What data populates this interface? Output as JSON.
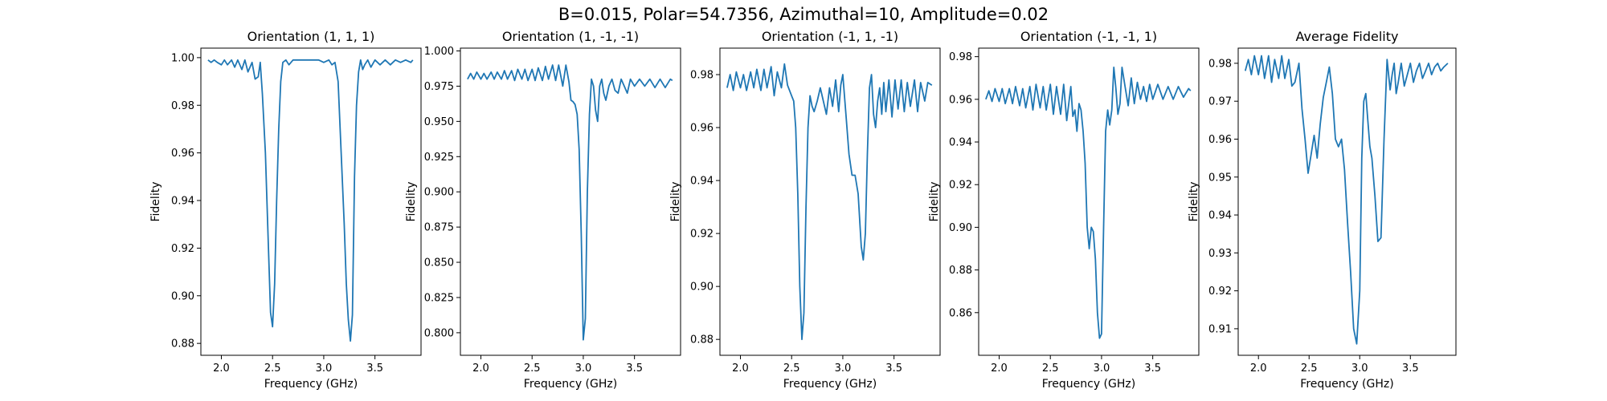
{
  "figure": {
    "title": "B=0.015, Polar=54.7356, Azimuthal=10, Amplitude=0.02",
    "line_color": "#1f77b4"
  },
  "chart_data": [
    {
      "type": "line",
      "title": "Orientation (1, 1, 1)",
      "xlabel": "Frequency (GHz)",
      "ylabel": "Fidelity",
      "xlim": [
        1.8,
        3.95
      ],
      "ylim": [
        0.875,
        1.004
      ],
      "xticks": [
        2.0,
        2.5,
        3.0,
        3.5
      ],
      "xtick_labels": [
        "2.0",
        "2.5",
        "3.0",
        "3.5"
      ],
      "yticks": [
        0.88,
        0.9,
        0.92,
        0.94,
        0.96,
        0.98,
        1.0
      ],
      "ytick_labels": [
        "0.88",
        "0.90",
        "0.92",
        "0.94",
        "0.96",
        "0.98",
        "1.00"
      ],
      "x": [
        1.87,
        1.9,
        1.93,
        1.96,
        2.0,
        2.03,
        2.06,
        2.1,
        2.13,
        2.16,
        2.2,
        2.23,
        2.26,
        2.3,
        2.33,
        2.36,
        2.38,
        2.4,
        2.43,
        2.46,
        2.48,
        2.5,
        2.52,
        2.54,
        2.56,
        2.58,
        2.6,
        2.63,
        2.66,
        2.7,
        2.75,
        2.8,
        2.85,
        2.9,
        2.95,
        3.0,
        3.05,
        3.08,
        3.11,
        3.14,
        3.17,
        3.2,
        3.22,
        3.24,
        3.26,
        3.28,
        3.3,
        3.32,
        3.34,
        3.36,
        3.38,
        3.4,
        3.43,
        3.46,
        3.5,
        3.55,
        3.6,
        3.65,
        3.7,
        3.75,
        3.8,
        3.85,
        3.87
      ],
      "y": [
        0.999,
        0.998,
        0.999,
        0.998,
        0.997,
        0.999,
        0.997,
        0.999,
        0.996,
        0.999,
        0.995,
        0.999,
        0.994,
        0.998,
        0.991,
        0.992,
        0.998,
        0.985,
        0.96,
        0.92,
        0.893,
        0.887,
        0.905,
        0.94,
        0.97,
        0.99,
        0.998,
        0.999,
        0.997,
        0.999,
        0.999,
        0.999,
        0.999,
        0.999,
        0.999,
        0.998,
        0.999,
        0.997,
        0.998,
        0.99,
        0.96,
        0.93,
        0.905,
        0.89,
        0.881,
        0.892,
        0.95,
        0.98,
        0.994,
        0.999,
        0.995,
        0.997,
        0.999,
        0.996,
        0.999,
        0.997,
        0.999,
        0.997,
        0.999,
        0.998,
        0.999,
        0.998,
        0.999
      ]
    },
    {
      "type": "line",
      "title": "Orientation (1, -1, -1)",
      "xlabel": "Frequency (GHz)",
      "ylabel": "Fidelity",
      "xlim": [
        1.8,
        3.95
      ],
      "ylim": [
        0.784,
        1.002
      ],
      "xticks": [
        2.0,
        2.5,
        3.0,
        3.5
      ],
      "xtick_labels": [
        "2.0",
        "2.5",
        "3.0",
        "3.5"
      ],
      "yticks": [
        0.8,
        0.825,
        0.85,
        0.875,
        0.9,
        0.925,
        0.95,
        0.975,
        1.0
      ],
      "ytick_labels": [
        "0.800",
        "0.825",
        "0.850",
        "0.875",
        "0.900",
        "0.925",
        "0.950",
        "0.975",
        "1.000"
      ],
      "x": [
        1.87,
        1.9,
        1.93,
        1.96,
        2.0,
        2.03,
        2.06,
        2.1,
        2.13,
        2.16,
        2.2,
        2.23,
        2.26,
        2.3,
        2.33,
        2.36,
        2.4,
        2.43,
        2.46,
        2.5,
        2.53,
        2.56,
        2.6,
        2.63,
        2.66,
        2.7,
        2.73,
        2.76,
        2.8,
        2.83,
        2.86,
        2.88,
        2.9,
        2.92,
        2.94,
        2.96,
        2.98,
        3.0,
        3.02,
        3.04,
        3.06,
        3.08,
        3.1,
        3.12,
        3.14,
        3.16,
        3.18,
        3.2,
        3.22,
        3.25,
        3.28,
        3.31,
        3.34,
        3.37,
        3.4,
        3.43,
        3.46,
        3.5,
        3.55,
        3.6,
        3.65,
        3.7,
        3.75,
        3.8,
        3.85,
        3.87
      ],
      "y": [
        0.98,
        0.984,
        0.98,
        0.985,
        0.98,
        0.984,
        0.98,
        0.985,
        0.98,
        0.985,
        0.98,
        0.986,
        0.98,
        0.986,
        0.979,
        0.987,
        0.98,
        0.987,
        0.979,
        0.987,
        0.979,
        0.988,
        0.979,
        0.989,
        0.98,
        0.99,
        0.979,
        0.99,
        0.975,
        0.99,
        0.978,
        0.965,
        0.964,
        0.962,
        0.955,
        0.93,
        0.87,
        0.795,
        0.81,
        0.9,
        0.955,
        0.98,
        0.975,
        0.958,
        0.95,
        0.975,
        0.98,
        0.97,
        0.965,
        0.975,
        0.98,
        0.972,
        0.97,
        0.98,
        0.975,
        0.97,
        0.98,
        0.975,
        0.98,
        0.975,
        0.98,
        0.974,
        0.98,
        0.974,
        0.98,
        0.979
      ]
    },
    {
      "type": "line",
      "title": "Orientation (-1, 1, -1)",
      "xlabel": "Frequency (GHz)",
      "ylabel": "Fidelity",
      "xlim": [
        1.8,
        3.95
      ],
      "ylim": [
        0.874,
        0.99
      ],
      "xticks": [
        2.0,
        2.5,
        3.0,
        3.5
      ],
      "xtick_labels": [
        "2.0",
        "2.5",
        "3.0",
        "3.5"
      ],
      "yticks": [
        0.88,
        0.9,
        0.92,
        0.94,
        0.96,
        0.98
      ],
      "ytick_labels": [
        "0.88",
        "0.90",
        "0.92",
        "0.94",
        "0.96",
        "0.98"
      ],
      "x": [
        1.87,
        1.9,
        1.93,
        1.96,
        2.0,
        2.03,
        2.06,
        2.1,
        2.13,
        2.16,
        2.2,
        2.23,
        2.26,
        2.3,
        2.33,
        2.36,
        2.4,
        2.43,
        2.46,
        2.5,
        2.52,
        2.54,
        2.56,
        2.58,
        2.6,
        2.62,
        2.64,
        2.66,
        2.68,
        2.7,
        2.72,
        2.75,
        2.78,
        2.81,
        2.84,
        2.87,
        2.9,
        2.93,
        2.96,
        2.98,
        3.0,
        3.03,
        3.06,
        3.09,
        3.12,
        3.15,
        3.18,
        3.2,
        3.22,
        3.24,
        3.26,
        3.28,
        3.3,
        3.32,
        3.34,
        3.36,
        3.38,
        3.4,
        3.42,
        3.45,
        3.48,
        3.51,
        3.54,
        3.57,
        3.6,
        3.63,
        3.66,
        3.7,
        3.73,
        3.76,
        3.8,
        3.83,
        3.87
      ],
      "y": [
        0.975,
        0.98,
        0.974,
        0.981,
        0.975,
        0.98,
        0.974,
        0.981,
        0.975,
        0.982,
        0.974,
        0.982,
        0.975,
        0.983,
        0.972,
        0.981,
        0.975,
        0.984,
        0.976,
        0.972,
        0.97,
        0.96,
        0.935,
        0.9,
        0.88,
        0.89,
        0.93,
        0.96,
        0.972,
        0.968,
        0.966,
        0.97,
        0.975,
        0.97,
        0.965,
        0.975,
        0.968,
        0.978,
        0.966,
        0.976,
        0.98,
        0.965,
        0.95,
        0.942,
        0.942,
        0.935,
        0.915,
        0.91,
        0.92,
        0.95,
        0.975,
        0.98,
        0.965,
        0.96,
        0.97,
        0.975,
        0.965,
        0.977,
        0.966,
        0.978,
        0.964,
        0.978,
        0.967,
        0.978,
        0.966,
        0.977,
        0.968,
        0.978,
        0.966,
        0.977,
        0.97,
        0.977,
        0.976
      ]
    },
    {
      "type": "line",
      "title": "Orientation (-1, -1, 1)",
      "xlabel": "Frequency (GHz)",
      "ylabel": "Fidelity",
      "xlim": [
        1.8,
        3.95
      ],
      "ylim": [
        0.84,
        0.984
      ],
      "xticks": [
        2.0,
        2.5,
        3.0,
        3.5
      ],
      "xtick_labels": [
        "2.0",
        "2.5",
        "3.0",
        "3.5"
      ],
      "yticks": [
        0.86,
        0.88,
        0.9,
        0.92,
        0.94,
        0.96,
        0.98
      ],
      "ytick_labels": [
        "0.86",
        "0.88",
        "0.90",
        "0.92",
        "0.94",
        "0.96",
        "0.98"
      ],
      "x": [
        1.87,
        1.9,
        1.93,
        1.96,
        2.0,
        2.03,
        2.06,
        2.1,
        2.13,
        2.16,
        2.2,
        2.23,
        2.26,
        2.3,
        2.33,
        2.36,
        2.4,
        2.43,
        2.46,
        2.5,
        2.53,
        2.56,
        2.6,
        2.63,
        2.66,
        2.7,
        2.72,
        2.74,
        2.76,
        2.78,
        2.8,
        2.82,
        2.84,
        2.86,
        2.88,
        2.9,
        2.92,
        2.94,
        2.96,
        2.98,
        3.0,
        3.02,
        3.04,
        3.06,
        3.08,
        3.1,
        3.12,
        3.14,
        3.16,
        3.18,
        3.2,
        3.23,
        3.26,
        3.29,
        3.32,
        3.35,
        3.38,
        3.41,
        3.44,
        3.47,
        3.5,
        3.55,
        3.6,
        3.65,
        3.7,
        3.75,
        3.8,
        3.85,
        3.87
      ],
      "y": [
        0.96,
        0.964,
        0.959,
        0.965,
        0.959,
        0.965,
        0.958,
        0.965,
        0.958,
        0.966,
        0.957,
        0.965,
        0.956,
        0.966,
        0.955,
        0.967,
        0.956,
        0.966,
        0.955,
        0.967,
        0.953,
        0.966,
        0.953,
        0.967,
        0.95,
        0.966,
        0.952,
        0.955,
        0.945,
        0.958,
        0.955,
        0.945,
        0.93,
        0.9,
        0.89,
        0.9,
        0.898,
        0.885,
        0.86,
        0.848,
        0.85,
        0.9,
        0.945,
        0.955,
        0.948,
        0.955,
        0.975,
        0.965,
        0.953,
        0.958,
        0.975,
        0.966,
        0.957,
        0.97,
        0.958,
        0.968,
        0.96,
        0.966,
        0.959,
        0.967,
        0.96,
        0.967,
        0.96,
        0.966,
        0.96,
        0.966,
        0.961,
        0.965,
        0.964
      ]
    },
    {
      "type": "line",
      "title": "Average Fidelity",
      "xlabel": "Frequency (GHz)",
      "ylabel": "Fidelity",
      "xlim": [
        1.8,
        3.95
      ],
      "ylim": [
        0.903,
        0.984
      ],
      "xticks": [
        2.0,
        2.5,
        3.0,
        3.5
      ],
      "xtick_labels": [
        "2.0",
        "2.5",
        "3.0",
        "3.5"
      ],
      "yticks": [
        0.91,
        0.92,
        0.93,
        0.94,
        0.95,
        0.96,
        0.97,
        0.98
      ],
      "ytick_labels": [
        "0.91",
        "0.92",
        "0.93",
        "0.94",
        "0.95",
        "0.96",
        "0.97",
        "0.98"
      ],
      "x": [
        1.87,
        1.9,
        1.93,
        1.96,
        2.0,
        2.03,
        2.06,
        2.1,
        2.13,
        2.16,
        2.2,
        2.23,
        2.26,
        2.3,
        2.33,
        2.36,
        2.4,
        2.43,
        2.46,
        2.49,
        2.52,
        2.55,
        2.58,
        2.61,
        2.64,
        2.67,
        2.7,
        2.73,
        2.76,
        2.79,
        2.82,
        2.85,
        2.88,
        2.91,
        2.94,
        2.97,
        3.0,
        3.02,
        3.04,
        3.06,
        3.08,
        3.1,
        3.12,
        3.15,
        3.18,
        3.21,
        3.24,
        3.27,
        3.3,
        3.32,
        3.34,
        3.36,
        3.38,
        3.41,
        3.44,
        3.47,
        3.5,
        3.53,
        3.56,
        3.59,
        3.62,
        3.65,
        3.68,
        3.71,
        3.74,
        3.77,
        3.8,
        3.83,
        3.87
      ],
      "y": [
        0.978,
        0.981,
        0.977,
        0.982,
        0.977,
        0.982,
        0.976,
        0.982,
        0.975,
        0.981,
        0.976,
        0.982,
        0.976,
        0.981,
        0.974,
        0.975,
        0.98,
        0.968,
        0.96,
        0.951,
        0.956,
        0.961,
        0.955,
        0.964,
        0.971,
        0.975,
        0.979,
        0.972,
        0.96,
        0.958,
        0.96,
        0.952,
        0.938,
        0.925,
        0.91,
        0.906,
        0.92,
        0.955,
        0.97,
        0.972,
        0.965,
        0.958,
        0.955,
        0.945,
        0.933,
        0.934,
        0.96,
        0.981,
        0.973,
        0.977,
        0.98,
        0.972,
        0.975,
        0.98,
        0.974,
        0.977,
        0.98,
        0.975,
        0.978,
        0.98,
        0.976,
        0.978,
        0.98,
        0.977,
        0.979,
        0.98,
        0.978,
        0.979,
        0.98
      ]
    }
  ]
}
